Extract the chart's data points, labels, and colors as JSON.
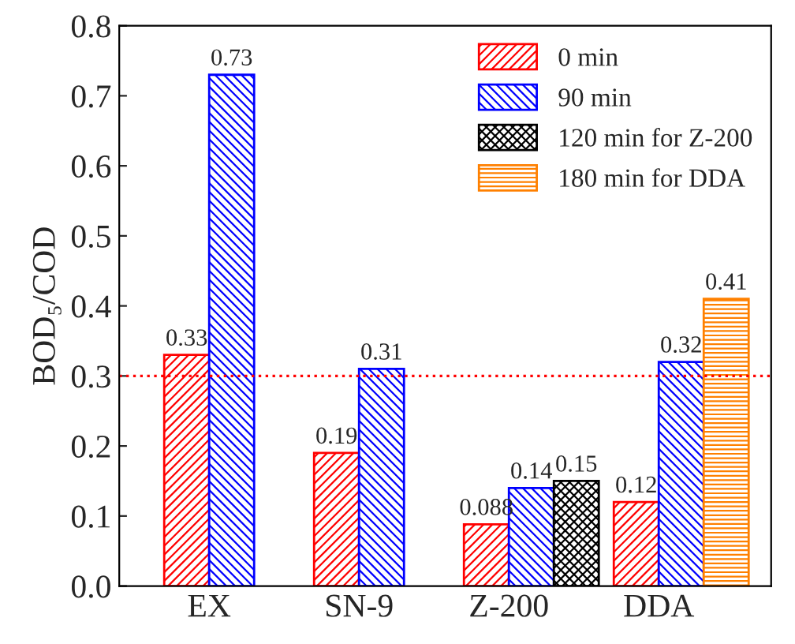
{
  "chart_data": {
    "type": "bar",
    "ylabel": "BOD₅/COD",
    "categories": [
      "EX",
      "SN-9",
      "Z-200",
      "DDA"
    ],
    "series": [
      {
        "name": "0 min",
        "color": "#ff0000",
        "values": [
          0.33,
          0.19,
          0.088,
          0.12
        ]
      },
      {
        "name": "90 min",
        "color": "#0000ff",
        "values": [
          0.73,
          0.31,
          0.14,
          0.32
        ]
      },
      {
        "name": "120 min for Z-200",
        "color": "#000000",
        "values": [
          null,
          null,
          0.15,
          null
        ]
      },
      {
        "name": "180 min for DDA",
        "color": "#ff8000",
        "values": [
          null,
          null,
          null,
          0.41
        ]
      }
    ],
    "ylim": [
      0,
      0.8
    ],
    "yticks": [
      {
        "value": 0,
        "label": "0.0"
      },
      0.1,
      0.2,
      0.3,
      0.4,
      0.5,
      0.6,
      0.7,
      0.8
    ],
    "ref_lines": [
      {
        "axis": "y",
        "value": 0.3,
        "color": "#ff0000",
        "line_style": "dotted"
      }
    ],
    "data_labels": true,
    "legend": "top right",
    "grid": false
  }
}
